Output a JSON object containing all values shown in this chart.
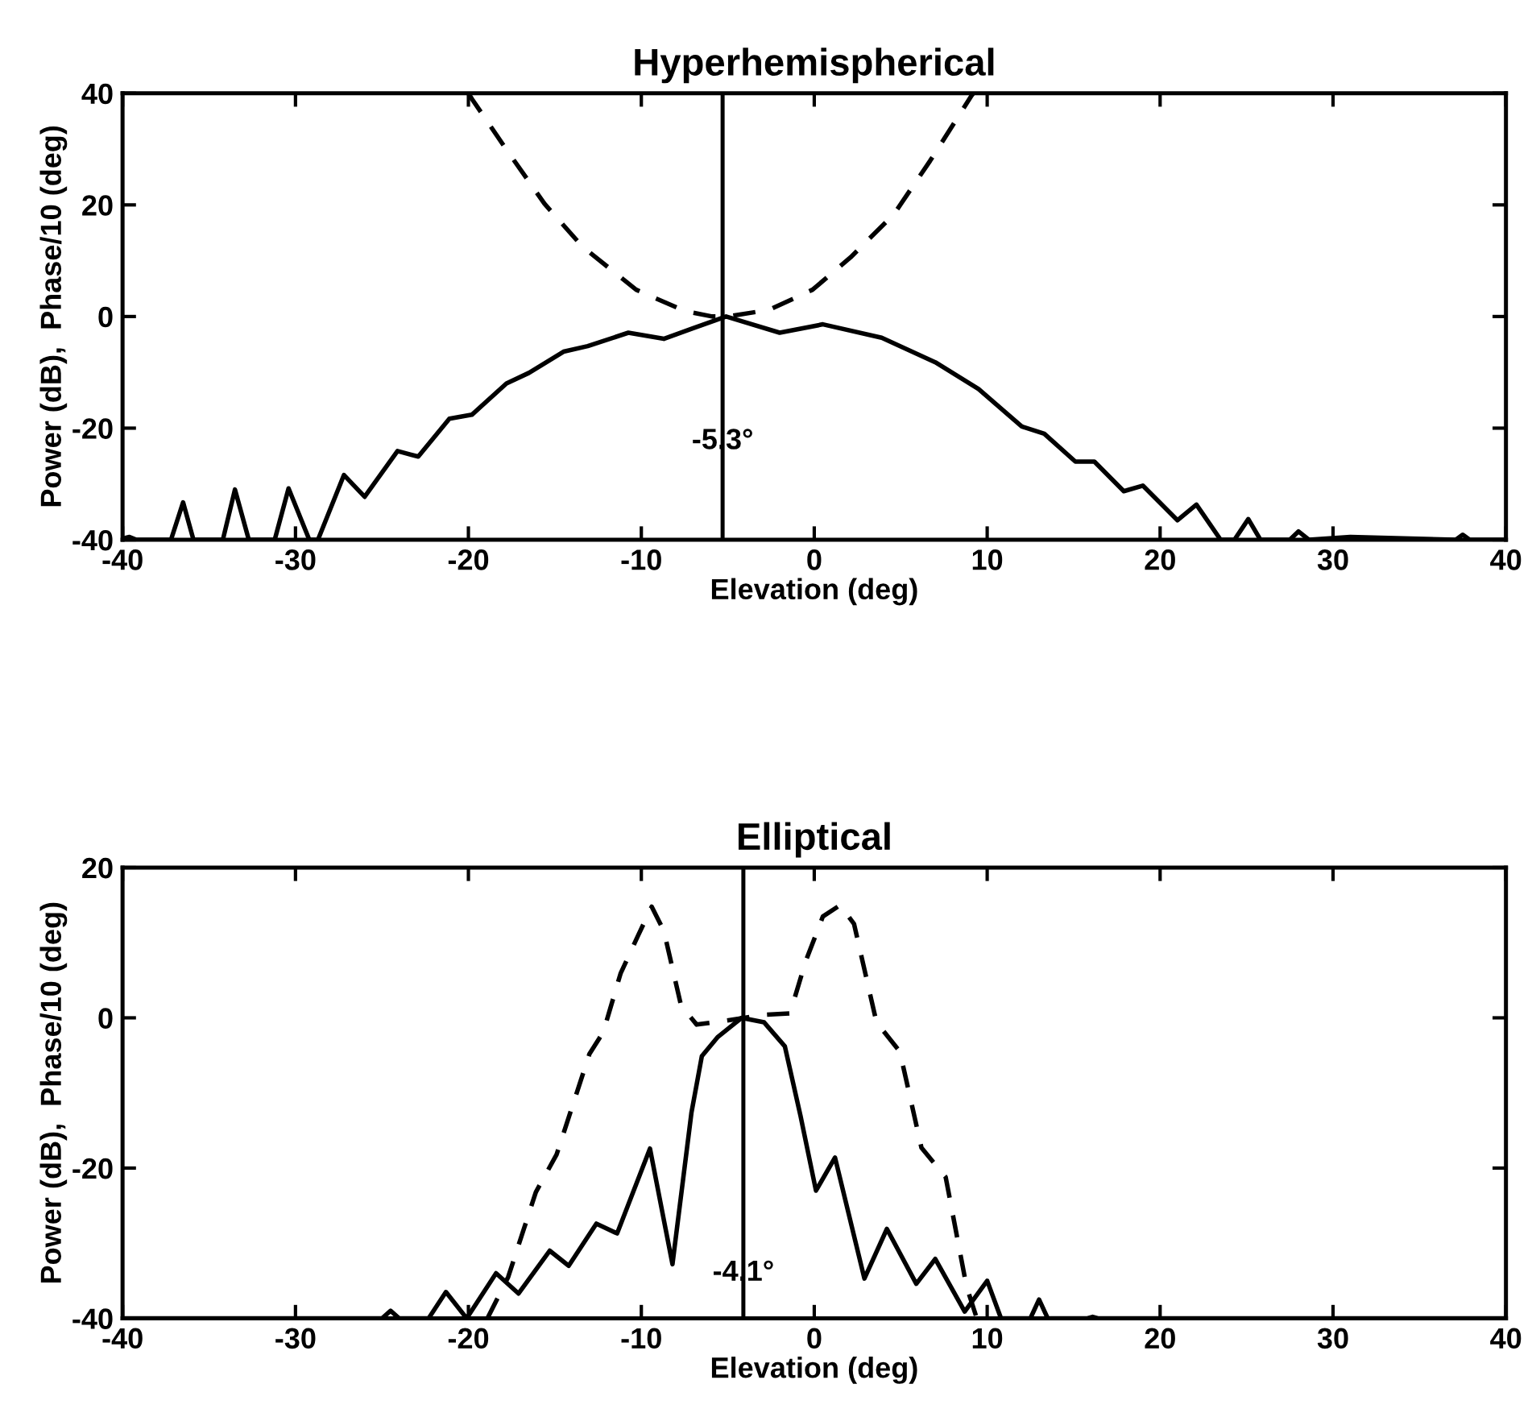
{
  "chart_data": [
    {
      "type": "line",
      "title": "Hyperhemispherical",
      "xlabel": "Elevation (deg)",
      "ylabel": "Power (dB),  Phase/10 (deg)",
      "xlim": [
        -40,
        40
      ],
      "ylim": [
        -40,
        40
      ],
      "xticks": [
        -40,
        -30,
        -20,
        -10,
        0,
        10,
        20,
        30,
        40
      ],
      "yticks": [
        -40,
        -20,
        0,
        20,
        40
      ],
      "grid": false,
      "series": [
        {
          "color": "#000000",
          "line_style": "solid",
          "x": [
            -40,
            -39.6,
            -39.2,
            -37.2,
            -36.5,
            -35.9,
            -34.2,
            -33.5,
            -32.7,
            -31.2,
            -30.4,
            -29.2,
            -28.7,
            -27.2,
            -26.0,
            -24.1,
            -22.9,
            -21.1,
            -19.8,
            -17.8,
            -16.5,
            -14.5,
            -13.1,
            -10.75,
            -8.7,
            -7.0,
            -5.1,
            -2.0,
            0.5,
            3.9,
            7.0,
            9.5,
            12.0,
            13.3,
            15.1,
            16.2,
            17.9,
            19.0,
            21.0,
            22.1,
            23.5,
            24.3,
            25.1,
            25.8,
            27.5,
            28.0,
            28.6,
            31.0,
            37.1,
            37.5,
            37.9,
            40
          ],
          "values": [
            -39.8,
            -39.5,
            -40,
            -40,
            -33.3,
            -40,
            -40,
            -31,
            -40,
            -40,
            -30.8,
            -40,
            -40,
            -28.4,
            -32.3,
            -24.1,
            -25.1,
            -18.3,
            -17.6,
            -12.0,
            -10.1,
            -6.3,
            -5.3,
            -2.9,
            -4.0,
            -2.1,
            0,
            -2.9,
            -1.4,
            -3.8,
            -8.2,
            -13.0,
            -19.7,
            -21.0,
            -26.0,
            -26.0,
            -31.3,
            -30.3,
            -36.5,
            -33.7,
            -40,
            -40,
            -36.3,
            -40,
            -40,
            -38.5,
            -40,
            -39.5,
            -40,
            -39.1,
            -40,
            -40
          ]
        },
        {
          "color": "#000000",
          "line_style": "dashed",
          "x": [
            -20.0,
            -19.8,
            -17.8,
            -15.6,
            -13.4,
            -10.3,
            -7.5,
            -5.9,
            -5.0,
            -2.6,
            -0.1,
            2.1,
            4.6,
            6.7,
            9.1,
            9.2
          ],
          "values": [
            40,
            39,
            29.9,
            20.2,
            12.5,
            4.8,
            1.0,
            0,
            0,
            1.2,
            4.8,
            10.6,
            18.3,
            27.9,
            39.6,
            40
          ]
        }
      ],
      "ref_lines": [
        {
          "axis": "x",
          "value": -5.3,
          "label": "-5.3°",
          "color": "#000000",
          "line_style": "solid"
        }
      ]
    },
    {
      "type": "line",
      "title": "Elliptical",
      "xlabel": "Elevation (deg)",
      "ylabel": "Power (dB),  Phase/10 (deg)",
      "xlim": [
        -40,
        40
      ],
      "ylim": [
        -40,
        20
      ],
      "xticks": [
        -40,
        -30,
        -20,
        -10,
        0,
        10,
        20,
        30,
        40
      ],
      "yticks": [
        -40,
        -20,
        0,
        20
      ],
      "grid": false,
      "series": [
        {
          "color": "#000000",
          "line_style": "solid",
          "x": [
            -40,
            -25.0,
            -24.5,
            -24.0,
            -22.3,
            -21.3,
            -20.1,
            -18.4,
            -17.1,
            -15.3,
            -14.2,
            -12.6,
            -11.4,
            -9.5,
            -8.2,
            -7.1,
            -6.5,
            -5.6,
            -4.2,
            -2.9,
            -1.7,
            -0.8,
            0.1,
            1.2,
            2.9,
            4.2,
            5.9,
            7.0,
            8.7,
            10.0,
            10.8,
            12.5,
            13.0,
            13.5,
            15.8,
            16.1,
            16.4,
            40
          ],
          "values": [
            -40,
            -40,
            -39.0,
            -40,
            -40,
            -36.5,
            -40,
            -34.0,
            -36.7,
            -31.0,
            -33.0,
            -27.4,
            -28.7,
            -17.4,
            -32.8,
            -12.6,
            -5.1,
            -2.6,
            0,
            -0.6,
            -3.8,
            -13.0,
            -23.0,
            -18.6,
            -34.7,
            -28.1,
            -35.4,
            -32.1,
            -39.1,
            -35.0,
            -40,
            -40,
            -37.5,
            -40,
            -40,
            -39.8,
            -40,
            -40
          ]
        },
        {
          "color": "#000000",
          "line_style": "dashed",
          "x": [
            -18.9,
            -17.7,
            -16.1,
            -14.9,
            -13.0,
            -12.2,
            -11.2,
            -10.2,
            -9.4,
            -8.7,
            -7.7,
            -6.8,
            -5.2,
            -2.9,
            -1.4,
            -0.5,
            0.5,
            1.5,
            2.3,
            3.6,
            4.95,
            6.2,
            7.6,
            8.8,
            9.4,
            10.2
          ],
          "values": [
            -40,
            -34.5,
            -23.2,
            -18.2,
            -4.8,
            -1.9,
            5.9,
            10.9,
            14.8,
            11.6,
            1.6,
            -0.9,
            -0.4,
            0.4,
            0.6,
            7.5,
            13.5,
            15.0,
            12.5,
            -0.6,
            -4.5,
            -17.3,
            -21.2,
            -35.7,
            -40,
            -39.5
          ]
        }
      ],
      "ref_lines": [
        {
          "axis": "x",
          "value": -4.1,
          "label": "-4.1°",
          "color": "#000000",
          "line_style": "solid"
        }
      ]
    }
  ]
}
